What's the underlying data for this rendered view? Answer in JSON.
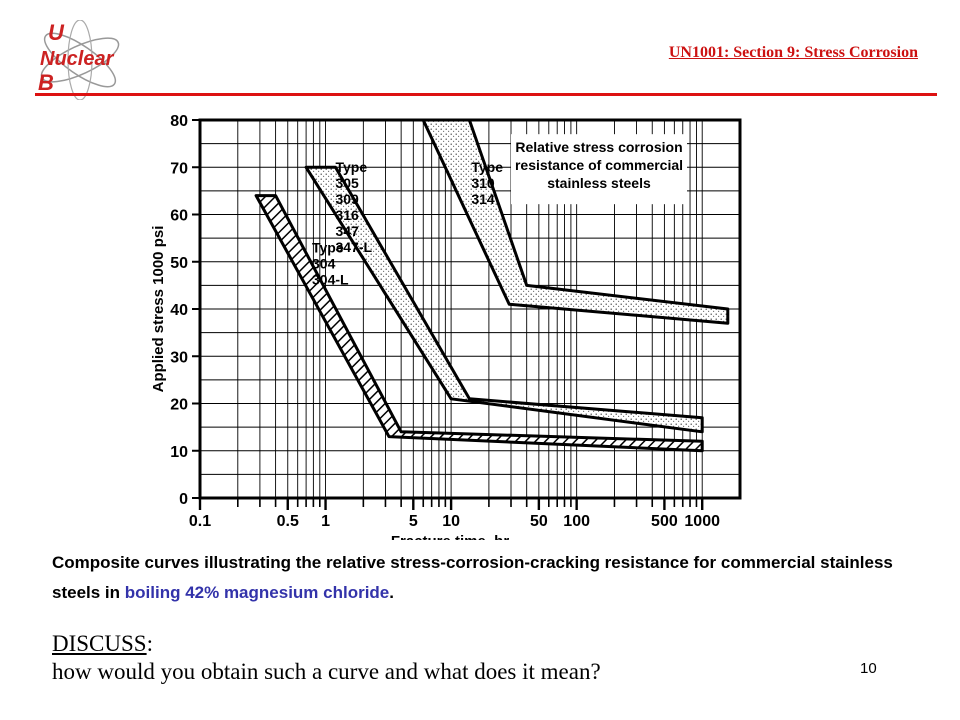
{
  "logo": {
    "letter_1": "U",
    "word": "Nuclear",
    "letter_2": "B",
    "icon": "atom-orbit-icon"
  },
  "header": {
    "title": "UN1001: Section 9: Stress Corrosion"
  },
  "chart_data": {
    "type": "area",
    "title": "Relative stress corrosion resistance of commercial stainless steels",
    "title_lines": [
      "Relative stress corrosion",
      "resistance of commercial",
      "stainless steels"
    ],
    "xlabel": "Fracture time, hr",
    "ylabel": "Applied stress 1000 psi",
    "x_scale": "log",
    "xlim": [
      0.1,
      2000
    ],
    "ylim": [
      0,
      80
    ],
    "x_ticks": [
      0.1,
      0.5,
      1,
      5,
      10,
      50,
      100,
      500,
      1000
    ],
    "x_tick_labels": [
      "0.1",
      "0.5",
      "1",
      "5",
      "10",
      "50",
      "100",
      "500",
      "1000"
    ],
    "y_ticks": [
      0,
      10,
      20,
      30,
      40,
      50,
      60,
      70,
      80
    ],
    "y_tick_labels": [
      "0",
      "10",
      "20",
      "30",
      "40",
      "50",
      "60",
      "70",
      "80"
    ],
    "grid": true,
    "series": [
      {
        "label_lines": [
          "Type",
          "304",
          "304-L"
        ],
        "fill": "hatched",
        "upper": [
          [
            0.4,
            64
          ],
          [
            4,
            14
          ],
          [
            1000,
            12
          ]
        ],
        "lower": [
          [
            1000,
            10
          ],
          [
            3.2,
            13
          ],
          [
            0.28,
            64
          ]
        ]
      },
      {
        "label_lines": [
          "Type",
          "305",
          "309",
          "316",
          "347",
          "347-L"
        ],
        "fill": "stippled",
        "upper": [
          [
            1.2,
            70
          ],
          [
            14,
            21
          ],
          [
            1000,
            17
          ]
        ],
        "lower": [
          [
            1000,
            14
          ],
          [
            10,
            21
          ],
          [
            0.7,
            70
          ]
        ]
      },
      {
        "label_lines": [
          "Type",
          "310",
          "314"
        ],
        "fill": "stippled",
        "upper": [
          [
            14,
            80
          ],
          [
            40,
            45
          ],
          [
            1600,
            40
          ]
        ],
        "lower": [
          [
            1600,
            37
          ],
          [
            29,
            41
          ],
          [
            6,
            80
          ]
        ]
      }
    ]
  },
  "caption": {
    "text_before": "Composite curves illustrating the relative stress-corrosion-cracking resistance for commercial stainless steels in ",
    "highlight": "boiling 42% magnesium chloride",
    "text_after": ".",
    "highlight_color": "#3333aa"
  },
  "discuss": {
    "label": "DISCUSS",
    "colon": ":",
    "question": "how would you obtain such a curve and what does it mean?"
  },
  "page_number": "10"
}
